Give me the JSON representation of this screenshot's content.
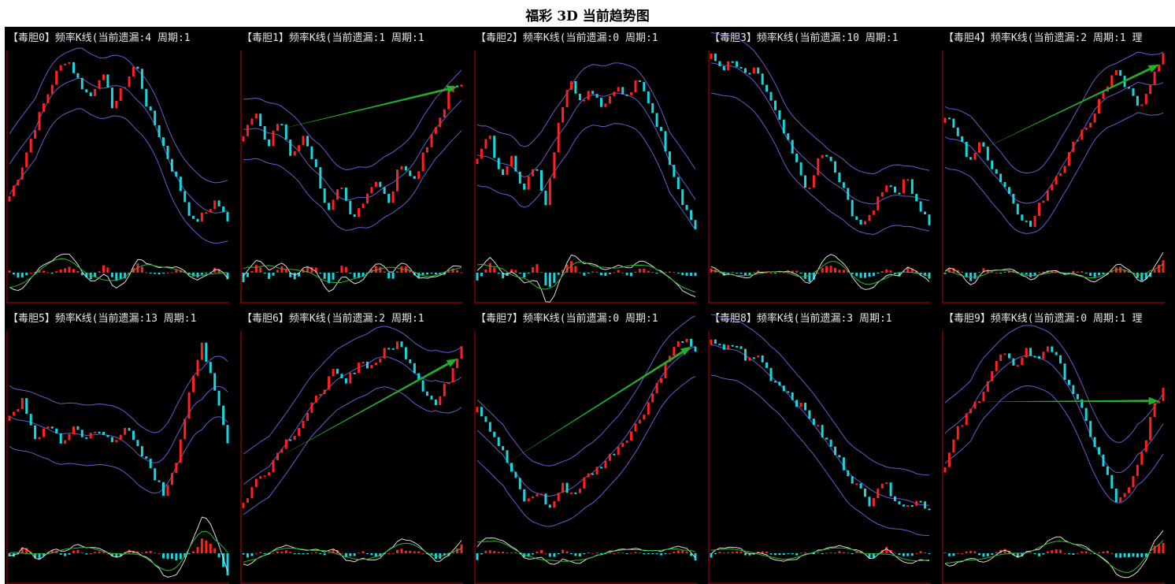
{
  "page_title": "福彩 3D 当前趋势图",
  "colors": {
    "background": "#000000",
    "up_candle": "#ff2020",
    "down_candle": "#18d6e0",
    "band": "#6a5acd",
    "trend_arrow": "#22b02a",
    "frame": "#c00000",
    "osc_white": "#dcdcdc",
    "osc_green": "#2fb82f"
  },
  "chart_data": [
    {
      "type": "candlestick",
      "title": "【毒胆0】频率K线(当前遗漏:4 周期:1",
      "trend": [
        0.2,
        0.35,
        0.55,
        0.72,
        0.88,
        0.98,
        0.85,
        0.75,
        0.9,
        0.7,
        0.82,
        0.95,
        0.7,
        0.55,
        0.38,
        0.22,
        0.05,
        0.1,
        0.18,
        0.05
      ],
      "arrow": false
    },
    {
      "type": "candlestick",
      "title": "【毒胆1】频率K线(当前遗漏:1 周期:1",
      "trend": [
        0.55,
        0.7,
        0.45,
        0.65,
        0.4,
        0.55,
        0.35,
        0.1,
        0.25,
        0.05,
        0.2,
        0.3,
        0.15,
        0.4,
        0.28,
        0.45,
        0.6,
        0.78,
        0.85
      ],
      "arrow": true
    },
    {
      "type": "candlestick",
      "title": "【毒胆2】频率K线(当前遗漏:0 周期:1",
      "trend": [
        0.4,
        0.55,
        0.3,
        0.45,
        0.2,
        0.4,
        0.15,
        0.6,
        0.85,
        0.75,
        0.8,
        0.7,
        0.82,
        0.75,
        0.85,
        0.72,
        0.55,
        0.35,
        0.15,
        0.02
      ],
      "arrow": false
    },
    {
      "type": "candlestick",
      "title": "【毒胆3】频率K线(当前遗漏:10 周期:1",
      "trend": [
        0.98,
        0.92,
        0.95,
        0.88,
        0.9,
        0.8,
        0.65,
        0.5,
        0.35,
        0.22,
        0.45,
        0.38,
        0.25,
        0.1,
        0.02,
        0.15,
        0.28,
        0.22,
        0.3,
        0.15,
        0.05
      ],
      "arrow": false
    },
    {
      "type": "candlestick",
      "title": "【毒胆4】频率K线(当前遗漏:2 周期:1 理",
      "trend": [
        0.65,
        0.55,
        0.4,
        0.5,
        0.35,
        0.25,
        0.12,
        0.02,
        0.18,
        0.3,
        0.4,
        0.55,
        0.62,
        0.78,
        0.9,
        0.8,
        0.7,
        0.85,
        0.98
      ],
      "arrow": true
    },
    {
      "type": "candlestick",
      "title": "【毒胆5】频率K线(当前遗漏:13 周期:1",
      "trend": [
        0.55,
        0.62,
        0.4,
        0.5,
        0.38,
        0.48,
        0.42,
        0.45,
        0.4,
        0.48,
        0.35,
        0.25,
        0.1,
        0.3,
        0.65,
        0.95,
        0.7,
        0.4
      ],
      "arrow": false
    },
    {
      "type": "candlestick",
      "title": "【毒胆6】频率K线(当前遗漏:2 周期:1",
      "trend": [
        0.05,
        0.18,
        0.25,
        0.38,
        0.45,
        0.55,
        0.68,
        0.78,
        0.72,
        0.85,
        0.82,
        0.9,
        0.95,
        0.85,
        0.7,
        0.6,
        0.75,
        0.95
      ],
      "arrow": true
    },
    {
      "type": "candlestick",
      "title": "【毒胆7】频率K线(当前遗漏:0 周期:1",
      "trend": [
        0.6,
        0.48,
        0.35,
        0.2,
        0.05,
        0.12,
        0.02,
        0.15,
        0.1,
        0.2,
        0.25,
        0.32,
        0.4,
        0.48,
        0.6,
        0.75,
        0.9,
        0.98,
        0.88
      ],
      "arrow": true
    },
    {
      "type": "candlestick",
      "title": "【毒胆8】频率K线(当前遗漏:3 周期:1",
      "trend": [
        0.98,
        0.9,
        0.95,
        0.85,
        0.88,
        0.75,
        0.7,
        0.62,
        0.55,
        0.45,
        0.35,
        0.25,
        0.15,
        0.05,
        0.18,
        0.1,
        0.02,
        0.08,
        0.02
      ],
      "arrow": false
    },
    {
      "type": "candlestick",
      "title": "【毒胆9】频率K线(当前遗漏:0 周期:1 理",
      "trend": [
        0.25,
        0.45,
        0.55,
        0.65,
        0.78,
        0.9,
        0.8,
        0.92,
        0.85,
        0.95,
        0.82,
        0.7,
        0.55,
        0.38,
        0.22,
        0.05,
        0.12,
        0.3,
        0.55,
        0.7
      ],
      "arrow": true
    }
  ]
}
